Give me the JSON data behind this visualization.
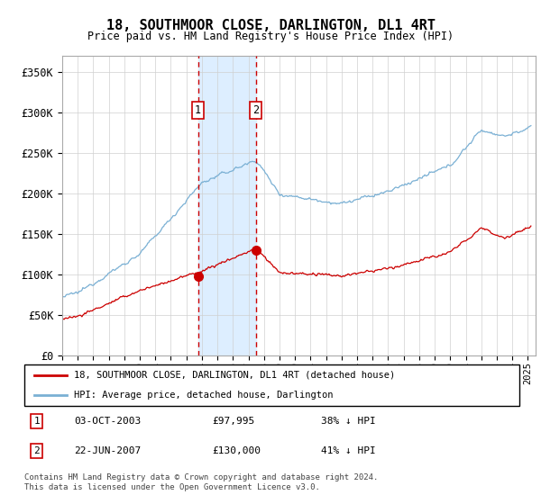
{
  "title": "18, SOUTHMOOR CLOSE, DARLINGTON, DL1 4RT",
  "subtitle": "Price paid vs. HM Land Registry's House Price Index (HPI)",
  "legend_line1": "18, SOUTHMOOR CLOSE, DARLINGTON, DL1 4RT (detached house)",
  "legend_line2": "HPI: Average price, detached house, Darlington",
  "footnote": "Contains HM Land Registry data © Crown copyright and database right 2024.\nThis data is licensed under the Open Government Licence v3.0.",
  "transaction1_label": "1",
  "transaction1_date": "03-OCT-2003",
  "transaction1_price": "£97,995",
  "transaction1_hpi": "38% ↓ HPI",
  "transaction2_label": "2",
  "transaction2_date": "22-JUN-2007",
  "transaction2_price": "£130,000",
  "transaction2_hpi": "41% ↓ HPI",
  "property_color": "#cc0000",
  "hpi_color": "#7ab0d4",
  "shading_color": "#ddeeff",
  "transaction1_x": 2003.75,
  "transaction2_x": 2007.47,
  "price_t1": 97995,
  "price_t2": 130000,
  "xlim_left": 1995.0,
  "xlim_right": 2025.5,
  "ylim_bottom": 0,
  "ylim_top": 370000,
  "yticks": [
    0,
    50000,
    100000,
    150000,
    200000,
    250000,
    300000,
    350000
  ],
  "ytick_labels": [
    "£0",
    "£50K",
    "£100K",
    "£150K",
    "£200K",
    "£250K",
    "£300K",
    "£350K"
  ]
}
